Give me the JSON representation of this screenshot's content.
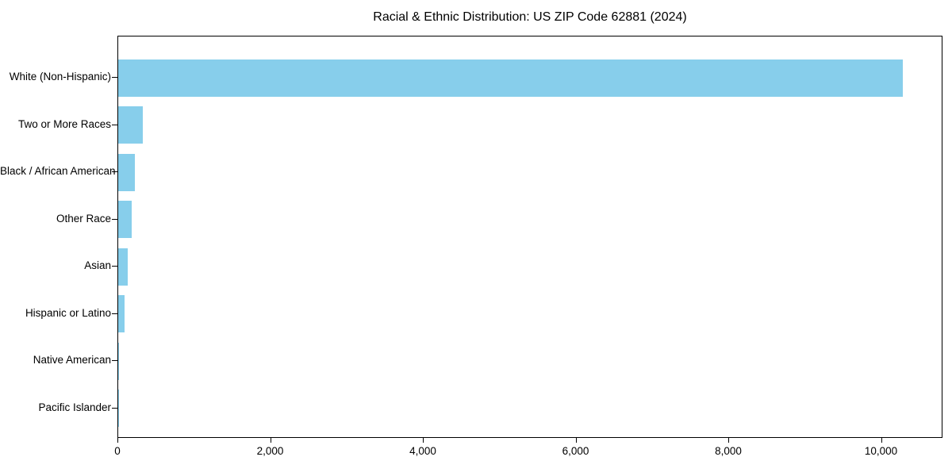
{
  "figure": {
    "background": "#ffffff",
    "axis_color": "#000000",
    "text_color": "#000000"
  },
  "chart_data": {
    "type": "bar",
    "orientation": "horizontal",
    "title": "Racial & Ethnic Distribution: US ZIP Code 62881 (2024)",
    "categories": [
      "White (Non-Hispanic)",
      "Two or More Races",
      "Black / African American",
      "Other Race",
      "Asian",
      "Hispanic or Latino",
      "Native American",
      "Pacific Islander"
    ],
    "values": [
      10280,
      325,
      220,
      180,
      120,
      85,
      15,
      5
    ],
    "bar_color": "#87CEEB",
    "xlabel": "",
    "ylabel": "",
    "xlim": [
      0,
      10805
    ],
    "x_ticks": {
      "values": [
        0,
        2000,
        4000,
        6000,
        8000,
        10000
      ],
      "labels": [
        "0",
        "2,000",
        "4,000",
        "6,000",
        "8,000",
        "10,000"
      ]
    },
    "grid": false,
    "legend": null
  }
}
